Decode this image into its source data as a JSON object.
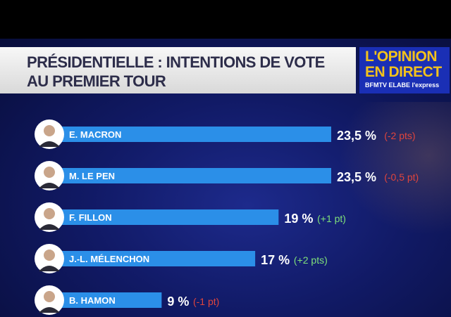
{
  "header": {
    "title_line1": "PRÉSIDENTIELLE : INTENTIONS DE VOTE",
    "title_line2": "AU PREMIER TOUR"
  },
  "logo": {
    "line1": "L'OPINION",
    "line2": "EN DIRECT",
    "sources": "BFMTV ELABE l'express"
  },
  "colors": {
    "bar": "#2b8fe8",
    "header_bg": "#eeeeee",
    "logo_bg": "#1a2fb5",
    "logo_text": "#f3c21b",
    "positive_change": "#7fe07a",
    "negative_change": "#e0453c",
    "background": "#111a66"
  },
  "chart_data": {
    "type": "bar",
    "orientation": "horizontal",
    "title": "PRÉSIDENTIELLE : INTENTIONS DE VOTE AU PREMIER TOUR",
    "categories": [
      "E. MACRON",
      "M. LE PEN",
      "F. FILLON",
      "J.-L. MÉLENCHON",
      "B. HAMON"
    ],
    "values": [
      23.5,
      23.5,
      19,
      17,
      9
    ],
    "value_labels": [
      "23,5 %",
      "23,5 %",
      "19 %",
      "17 %",
      "9 %"
    ],
    "change_labels": [
      "(-2 pts)",
      "(-0,5 pt)",
      "(+1 pt)",
      "(+2 pts)",
      "(-1 pt)"
    ],
    "change_signs": [
      "neg",
      "neg",
      "pos",
      "pos",
      "neg"
    ],
    "unit": "%",
    "grid": false,
    "legend": "none"
  }
}
